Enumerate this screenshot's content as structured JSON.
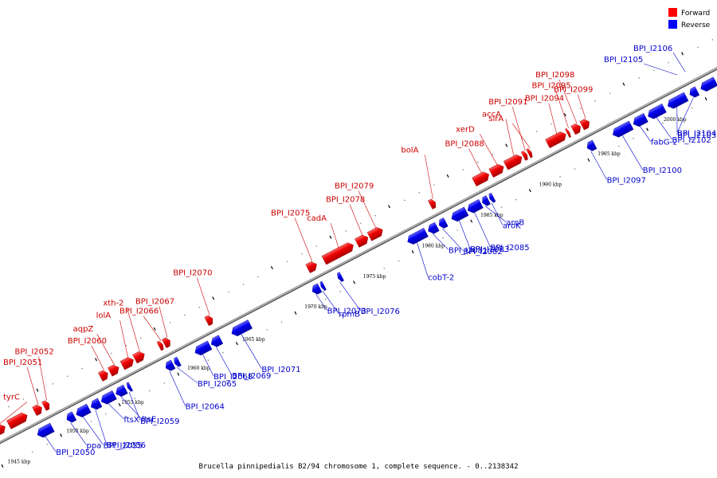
{
  "legend": [
    {
      "label": "Forward",
      "color": "#ff0000"
    },
    {
      "label": "Reverse",
      "color": "#0000ff"
    }
  ],
  "footer": "Brucella pinnipedialis B2/94 chromosome 1, complete sequence. - 0..2138342",
  "axis": {
    "ticks": [
      {
        "label": "1945 kbp",
        "t": 0.01
      },
      {
        "label": "1950 kbp",
        "t": 0.09
      },
      {
        "label": "1955 kbp",
        "t": 0.165
      },
      {
        "label": "1960 kbp",
        "t": 0.255
      },
      {
        "label": "1965 kbp",
        "t": 0.33
      },
      {
        "label": "1970 kbp",
        "t": 0.415
      },
      {
        "label": "1975 kbp",
        "t": 0.495
      },
      {
        "label": "1980 kbp",
        "t": 0.575
      },
      {
        "label": "1985 kbp",
        "t": 0.655
      },
      {
        "label": "1990 kbp",
        "t": 0.735
      },
      {
        "label": "1995 kbp",
        "t": 0.815
      },
      {
        "label": "2000 kbp",
        "t": 0.905
      }
    ]
  },
  "forward_genes": [
    {
      "label": "tyrC",
      "t0": 0.0,
      "t1": 0.025
    },
    {
      "label": "",
      "t0": 0.03,
      "t1": 0.055
    },
    {
      "label": "BPI_I2051",
      "t0": 0.065,
      "t1": 0.075
    },
    {
      "label": "BPI_I2052",
      "t0": 0.078,
      "t1": 0.085
    },
    {
      "label": "BPI_I2060",
      "t0": 0.155,
      "t1": 0.165
    },
    {
      "label": "aqpZ",
      "t0": 0.168,
      "t1": 0.18
    },
    {
      "label": "lolA",
      "t0": 0.185,
      "t1": 0.2
    },
    {
      "label": "xth-2",
      "t0": 0.202,
      "t1": 0.215
    },
    {
      "label": "BPI_I2066",
      "t0": 0.235,
      "t1": 0.24
    },
    {
      "label": "BPI_I2067",
      "t0": 0.242,
      "t1": 0.25
    },
    {
      "label": "BPI_I2070",
      "t0": 0.3,
      "t1": 0.308
    },
    {
      "label": "BPI_I2075",
      "t0": 0.438,
      "t1": 0.45
    },
    {
      "label": "cadA",
      "t0": 0.46,
      "t1": 0.5
    },
    {
      "label": "BPI_I2078",
      "t0": 0.505,
      "t1": 0.52
    },
    {
      "label": "BPI_I2079",
      "t0": 0.522,
      "t1": 0.54
    },
    {
      "label": "bolA",
      "t0": 0.605,
      "t1": 0.612
    },
    {
      "label": "BPI_I2088",
      "t0": 0.665,
      "t1": 0.685
    },
    {
      "label": "xerD",
      "t0": 0.688,
      "t1": 0.705
    },
    {
      "label": "accA",
      "t0": 0.708,
      "t1": 0.73
    },
    {
      "label": "BPI_I2091",
      "t0": 0.732,
      "t1": 0.737
    },
    {
      "label": "sirA",
      "t0": 0.739,
      "t1": 0.743
    },
    {
      "label": "BPI_I2094",
      "t0": 0.765,
      "t1": 0.79
    },
    {
      "label": "BPI_I2095",
      "t0": 0.792,
      "t1": 0.795
    },
    {
      "label": "BPI_I2098",
      "t0": 0.8,
      "t1": 0.81
    },
    {
      "label": "BPI_I2099",
      "t0": 0.812,
      "t1": 0.822
    }
  ],
  "reverse_genes": [
    {
      "label": "BPI_I2050",
      "t0": 0.055,
      "t1": 0.075
    },
    {
      "label": "ppa",
      "t0": 0.095,
      "t1": 0.105
    },
    {
      "label": "BPI_I2055",
      "t0": 0.108,
      "t1": 0.125
    },
    {
      "label": "BPI_I2056",
      "t0": 0.128,
      "t1": 0.14
    },
    {
      "label": "ftsX",
      "t0": 0.142,
      "t1": 0.16
    },
    {
      "label": "ftsE",
      "t0": 0.162,
      "t1": 0.175
    },
    {
      "label": "BPI_I2059",
      "t0": 0.178,
      "t1": 0.182
    },
    {
      "label": "BPI_I2064",
      "t0": 0.23,
      "t1": 0.24
    },
    {
      "label": "BPI_I2065",
      "t0": 0.242,
      "t1": 0.248
    },
    {
      "label": "BPI_I2068",
      "t0": 0.27,
      "t1": 0.29
    },
    {
      "label": "BPI_I2069",
      "t0": 0.292,
      "t1": 0.305
    },
    {
      "label": "BPI_I2071",
      "t0": 0.32,
      "t1": 0.345
    },
    {
      "label": "BPI_I2073",
      "t0": 0.43,
      "t1": 0.44
    },
    {
      "label": "rpmB",
      "t0": 0.442,
      "t1": 0.446
    },
    {
      "label": "BPI_I2076",
      "t0": 0.465,
      "t1": 0.47
    },
    {
      "label": "cobT-2",
      "t0": 0.56,
      "t1": 0.585
    },
    {
      "label": "BPI_I2081",
      "t0": 0.588,
      "t1": 0.6
    },
    {
      "label": "BPI_I2082",
      "t0": 0.603,
      "t1": 0.612
    },
    {
      "label": "BPI_I2083",
      "t0": 0.62,
      "t1": 0.64
    },
    {
      "label": "BPI_I2085",
      "t0": 0.642,
      "t1": 0.66
    },
    {
      "label": "aroB",
      "t0": 0.662,
      "t1": 0.67
    },
    {
      "label": "aroK",
      "t0": 0.672,
      "t1": 0.677
    },
    {
      "label": "BPI_I2097",
      "t0": 0.805,
      "t1": 0.815
    },
    {
      "label": "BPI_I2100",
      "t0": 0.84,
      "t1": 0.865
    },
    {
      "label": "fabG-2",
      "t0": 0.868,
      "t1": 0.885
    },
    {
      "label": "BPI_I2102",
      "t0": 0.888,
      "t1": 0.91
    },
    {
      "label": "BPI_I2103",
      "t0": 0.915,
      "t1": 0.94
    },
    {
      "label": "BPI_I2104",
      "t0": 0.945,
      "t1": 0.955
    },
    {
      "label": "",
      "t0": 0.96,
      "t1": 0.98
    },
    {
      "label": "",
      "t0": 0.982,
      "t1": 1.0
    }
  ],
  "top_labels": [
    {
      "label": "BPI_I2106",
      "side": "rev"
    },
    {
      "label": "BPI_I2105",
      "side": "rev"
    }
  ]
}
